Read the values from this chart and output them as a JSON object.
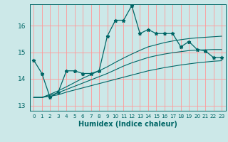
{
  "title": "",
  "xlabel": "Humidex (Indice chaleur)",
  "bg_color": "#cce8e8",
  "grid_color": "#ff9999",
  "line_color": "#006666",
  "xlim": [
    -0.5,
    23.5
  ],
  "ylim": [
    12.8,
    16.8
  ],
  "yticks": [
    13,
    14,
    15,
    16
  ],
  "xticks": [
    0,
    1,
    2,
    3,
    4,
    5,
    6,
    7,
    8,
    9,
    10,
    11,
    12,
    13,
    14,
    15,
    16,
    17,
    18,
    19,
    20,
    21,
    22,
    23
  ],
  "main_line": [
    14.7,
    14.2,
    13.3,
    13.5,
    14.3,
    14.3,
    14.2,
    14.2,
    14.3,
    15.6,
    16.2,
    16.2,
    16.75,
    15.7,
    15.85,
    15.7,
    15.7,
    15.7,
    15.2,
    15.4,
    15.1,
    15.05,
    14.8,
    14.8
  ],
  "trend1": [
    13.3,
    13.3,
    13.35,
    13.4,
    13.5,
    13.58,
    13.66,
    13.74,
    13.82,
    13.9,
    13.98,
    14.06,
    14.14,
    14.22,
    14.3,
    14.36,
    14.42,
    14.47,
    14.52,
    14.56,
    14.6,
    14.63,
    14.66,
    14.68
  ],
  "trend2": [
    13.3,
    13.3,
    13.38,
    13.48,
    13.6,
    13.72,
    13.84,
    13.96,
    14.08,
    14.2,
    14.34,
    14.48,
    14.6,
    14.7,
    14.8,
    14.87,
    14.93,
    14.98,
    15.02,
    15.06,
    15.08,
    15.09,
    15.1,
    15.1
  ],
  "trend3": [
    13.3,
    13.3,
    13.42,
    13.55,
    13.7,
    13.86,
    14.02,
    14.16,
    14.3,
    14.45,
    14.62,
    14.78,
    14.93,
    15.07,
    15.2,
    15.28,
    15.36,
    15.42,
    15.47,
    15.51,
    15.54,
    15.56,
    15.58,
    15.6
  ]
}
